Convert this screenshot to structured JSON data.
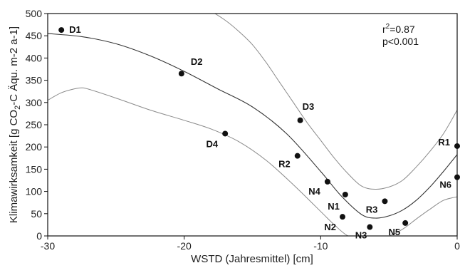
{
  "chart_data": {
    "type": "scatter",
    "xlabel": "WSTD (Jahresmittel) [cm]",
    "ylabel_parts": [
      "Klimawirksamkeit [g CO",
      "2",
      "-C Äqu. m-2 a-1]"
    ],
    "xlim": [
      -30,
      0
    ],
    "ylim": [
      0,
      500
    ],
    "xticks": [
      -30,
      -20,
      -10,
      0
    ],
    "yticks": [
      0,
      50,
      100,
      150,
      200,
      250,
      300,
      350,
      400,
      450,
      500
    ],
    "points": [
      {
        "name": "D1",
        "x": -29,
        "y": 463
      },
      {
        "name": "D2",
        "x": -20.2,
        "y": 365
      },
      {
        "name": "D4",
        "x": -17,
        "y": 230
      },
      {
        "name": "D3",
        "x": -11.5,
        "y": 260
      },
      {
        "name": "R2",
        "x": -11.7,
        "y": 180
      },
      {
        "name": "N4",
        "x": -9.5,
        "y": 122
      },
      {
        "name": "N1",
        "x": -8.2,
        "y": 93
      },
      {
        "name": "N2",
        "x": -8.4,
        "y": 43
      },
      {
        "name": "N3",
        "x": -6.4,
        "y": 20
      },
      {
        "name": "R3",
        "x": -5.3,
        "y": 78
      },
      {
        "name": "N5",
        "x": -3.8,
        "y": 29
      },
      {
        "name": "R1",
        "x": 0,
        "y": 202
      },
      {
        "name": "N6",
        "x": 0,
        "y": 132
      }
    ],
    "fit_curve": {
      "x": [
        -30,
        -27.5,
        -25,
        -22.5,
        -20,
        -17.5,
        -15,
        -12.5,
        -10,
        -8.5,
        -7,
        -6,
        -5,
        -4,
        -3,
        -2,
        -1,
        0
      ],
      "y": [
        455,
        448,
        432,
        405,
        370,
        330,
        290,
        230,
        145,
        90,
        48,
        40,
        45,
        58,
        80,
        110,
        145,
        183
      ]
    },
    "upper_band": {
      "x": [
        -18,
        -17,
        -16,
        -15,
        -14,
        -13,
        -12,
        -11,
        -10,
        -9,
        -8,
        -7,
        -6,
        -5,
        -4,
        -3,
        -2,
        -1,
        0
      ],
      "y": [
        505,
        485,
        460,
        430,
        390,
        345,
        300,
        255,
        215,
        175,
        140,
        112,
        105,
        110,
        125,
        155,
        190,
        230,
        283
      ]
    },
    "lower_band": {
      "x": [
        -30,
        -29,
        -28,
        -27.5,
        -27,
        -25,
        -22.5,
        -20,
        -18,
        -16,
        -14,
        -12,
        -10,
        -9,
        -8,
        -7,
        -6,
        -5,
        -4,
        -3,
        -2,
        -1,
        0
      ],
      "y": [
        305,
        322,
        331,
        333,
        330,
        310,
        283,
        260,
        240,
        212,
        170,
        115,
        55,
        25,
        0,
        -5,
        -5,
        0,
        15,
        38,
        60,
        80,
        88
      ]
    },
    "annotations": {
      "r2_prefix": "r",
      "r2_sup": "2",
      "r2_value": "=0.87",
      "p_value": "p<0.001"
    }
  }
}
